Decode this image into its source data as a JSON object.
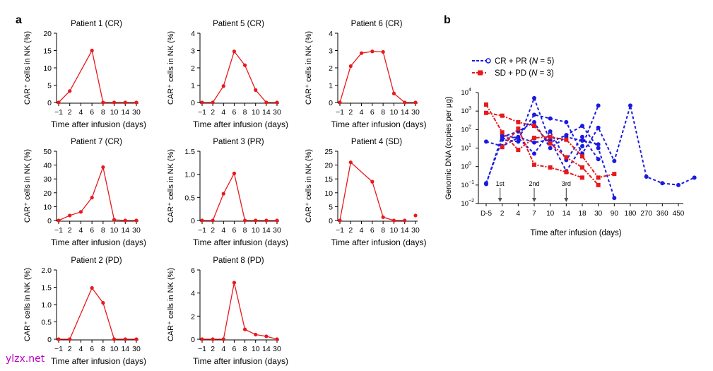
{
  "panel_a_label": "a",
  "panel_b_label": "b",
  "watermark": "ylzx.net",
  "colors": {
    "red": "#e8191c",
    "blue": "#1a1ae0",
    "grey": "#555555"
  },
  "chart_data": [
    {
      "type": "line",
      "title": "Patient 1 (CR)",
      "xlabel": "Time after infusion (days)",
      "ylabel": "CAR⁺ cells in NK (%)",
      "categories": [
        "−1",
        "2",
        "4",
        "6",
        "8",
        "10",
        "14",
        "30"
      ],
      "values": [
        0,
        3.3,
        null,
        15,
        0,
        0,
        0,
        0
      ],
      "ylim": [
        0,
        20
      ],
      "yticks": [
        "0",
        "5",
        "10",
        "15",
        "20"
      ]
    },
    {
      "type": "line",
      "title": "Patient 5 (CR)",
      "xlabel": "Time after infusion (days)",
      "ylabel": "CAR⁺ cells in NK (%)",
      "categories": [
        "−1",
        "2",
        "4",
        "6",
        "8",
        "10",
        "14",
        "30"
      ],
      "values": [
        0,
        0,
        0.95,
        2.95,
        2.15,
        0.72,
        0,
        0
      ],
      "ylim": [
        0,
        4
      ],
      "yticks": [
        "0",
        "1",
        "2",
        "3",
        "4"
      ]
    },
    {
      "type": "line",
      "title": "Patient 6 (CR)",
      "xlabel": "Time after infusion (days)",
      "ylabel": "CAR⁺ cells in NK (%)",
      "categories": [
        "−1",
        "2",
        "4",
        "6",
        "8",
        "10",
        "14",
        "30"
      ],
      "values": [
        0,
        2.1,
        2.85,
        2.95,
        2.92,
        0.52,
        0,
        0
      ],
      "ylim": [
        0,
        4
      ],
      "yticks": [
        "0",
        "1",
        "2",
        "3",
        "4"
      ]
    },
    {
      "type": "line",
      "title": "Patient 7 (CR)",
      "xlabel": "Time after infusion (days)",
      "ylabel": "CAR⁺ cells in NK (%)",
      "categories": [
        "−1",
        "2",
        "4",
        "6",
        "8",
        "10",
        "14",
        "30"
      ],
      "values": [
        0,
        3.6,
        6.2,
        16.5,
        38.5,
        0.5,
        0,
        0
      ],
      "ylim": [
        0,
        50
      ],
      "yticks": [
        "0",
        "10",
        "20",
        "30",
        "40",
        "50"
      ]
    },
    {
      "type": "line",
      "title": "Patient 3 (PR)",
      "xlabel": "Time after infusion (days)",
      "ylabel": "CAR⁺ cells in NK (%)",
      "categories": [
        "−1",
        "2",
        "4",
        "6",
        "8",
        "10",
        "14",
        "30"
      ],
      "values": [
        0,
        0,
        0.58,
        1.02,
        0,
        0,
        0,
        0
      ],
      "ylim": [
        0,
        1.5
      ],
      "yticks": [
        "0",
        "0.5",
        "1.0",
        "1.5"
      ]
    },
    {
      "type": "line",
      "title": "Patient 4 (SD)",
      "xlabel": "Time after infusion (days)",
      "ylabel": "CAR⁺ cells in NK (%)",
      "categories": [
        "−1",
        "2",
        "4",
        "6",
        "8",
        "10",
        "14",
        "30"
      ],
      "values": [
        0,
        21,
        null,
        14,
        1.2,
        0,
        0,
        null
      ],
      "extra_point": {
        "category": "30",
        "value": 1.8
      },
      "ylim": [
        0,
        25
      ],
      "yticks": [
        "0",
        "5",
        "10",
        "15",
        "20",
        "25"
      ]
    },
    {
      "type": "line",
      "title": "Patient 2 (PD)",
      "xlabel": "Time after infusion (days)",
      "ylabel": "CAR⁺ cells in NK (%)",
      "categories": [
        "−1",
        "2",
        "4",
        "6",
        "8",
        "10",
        "14",
        "30"
      ],
      "values": [
        0,
        0,
        null,
        1.48,
        1.05,
        0,
        0,
        0
      ],
      "ylim": [
        0,
        2.0
      ],
      "yticks": [
        "0",
        "0.5",
        "1.0",
        "1.5",
        "2.0"
      ]
    },
    {
      "type": "line",
      "title": "Patient 8 (PD)",
      "xlabel": "Time after infusion (days)",
      "ylabel": "CAR⁺ cells in NK (%)",
      "categories": [
        "−1",
        "2",
        "4",
        "6",
        "8",
        "10",
        "14",
        "30"
      ],
      "values": [
        0,
        0,
        0,
        4.9,
        0.85,
        0.4,
        0.25,
        0
      ],
      "ylim": [
        0,
        6
      ],
      "yticks": [
        "0",
        "2",
        "4",
        "6"
      ]
    },
    {
      "type": "line",
      "log_scale": true,
      "xlabel": "Time after infusion (days)",
      "ylabel": "Genomic DNA (copies per μg)",
      "categories": [
        "D-5",
        "2",
        "4",
        "7",
        "10",
        "14",
        "18",
        "30",
        "90",
        "180",
        "270",
        "360",
        "450"
      ],
      "ylim_exp": [
        -2,
        4
      ],
      "legend": [
        {
          "label": "CR + PR (",
          "n_italic": "N",
          "n_rest": " = 5)",
          "color": "blue"
        },
        {
          "label": "SD + PD (",
          "n_italic": "N",
          "n_rest": " = 3)",
          "color": "red"
        }
      ],
      "annotations": [
        {
          "text": "1st",
          "category": "2"
        },
        {
          "text": "2nd",
          "category": "7"
        },
        {
          "text": "3rd",
          "category": "14"
        }
      ],
      "series": [
        {
          "name": "CR + PR",
          "color": "blue",
          "points": [
            [
              0,
              -0.95
            ],
            [
              1,
              1.7
            ],
            [
              2,
              1.55
            ],
            [
              3,
              0.7
            ],
            [
              4,
              1.9
            ],
            [
              5,
              0.35
            ],
            [
              6,
              1.6
            ],
            [
              7,
              0.4
            ]
          ]
        },
        {
          "name": "CR + PR",
          "color": "blue",
          "points": [
            [
              0,
              -0.9
            ],
            [
              1,
              1.45
            ],
            [
              2,
              1.35
            ],
            [
              3,
              3.7
            ],
            [
              4,
              1.3
            ],
            [
              5,
              1.7
            ],
            [
              6,
              2.2
            ],
            [
              7,
              1.0
            ],
            [
              8,
              -1.7
            ]
          ]
        },
        {
          "name": "CR + PR",
          "color": "blue",
          "points": [
            [
              0,
              1.35
            ],
            [
              1,
              1.1
            ],
            [
              2,
              1.55
            ],
            [
              3,
              2.8
            ],
            [
              4,
              2.6
            ],
            [
              5,
              2.4
            ],
            [
              6,
              0.7
            ],
            [
              7,
              2.1
            ],
            [
              8,
              0.3
            ],
            [
              9,
              3.3
            ],
            [
              10,
              -0.55
            ],
            [
              11,
              -0.9
            ],
            [
              12,
              -1.0
            ],
            [
              13,
              -0.6
            ]
          ]
        },
        {
          "name": "CR + PR",
          "color": "blue",
          "points": [
            [
              1,
              1.6
            ],
            [
              2,
              1.9
            ],
            [
              3,
              2.4
            ],
            [
              4,
              1.0
            ],
            [
              5,
              1.6
            ],
            [
              6,
              1.4
            ],
            [
              7,
              1.2
            ]
          ]
        },
        {
          "name": "CR + PR",
          "color": "blue",
          "points": [
            [
              1,
              1.5
            ],
            [
              2,
              1.6
            ],
            [
              3,
              1.3
            ],
            [
              4,
              1.45
            ],
            [
              5,
              -0.25
            ],
            [
              6,
              1.1
            ],
            [
              7,
              3.3
            ]
          ]
        },
        {
          "name": "SD + PD",
          "color": "red",
          "points": [
            [
              0,
              3.35
            ],
            [
              1,
              1.85
            ],
            [
              2,
              0.9
            ],
            [
              3,
              1.55
            ],
            [
              4,
              1.6
            ],
            [
              5,
              1.45
            ],
            [
              6,
              0.55
            ],
            [
              7,
              -0.6
            ],
            [
              8,
              -0.4
            ]
          ]
        },
        {
          "name": "SD + PD",
          "color": "red",
          "points": [
            [
              0,
              2.9
            ],
            [
              1,
              2.75
            ],
            [
              2,
              2.4
            ],
            [
              3,
              2.2
            ],
            [
              4,
              1.25
            ],
            [
              5,
              0.5
            ],
            [
              6,
              -0.05
            ],
            [
              7,
              -1.0
            ]
          ]
        },
        {
          "name": "SD + PD",
          "color": "red",
          "points": [
            [
              1,
              1.05
            ],
            [
              2,
              2.05
            ],
            [
              3,
              0.1
            ],
            [
              4,
              -0.05
            ],
            [
              5,
              -0.3
            ],
            [
              6,
              -0.6
            ]
          ]
        }
      ]
    }
  ]
}
